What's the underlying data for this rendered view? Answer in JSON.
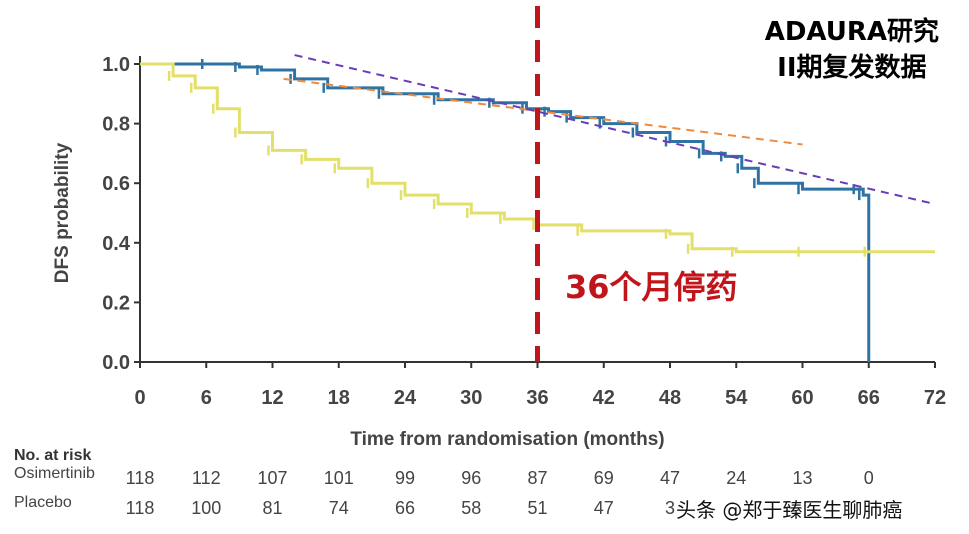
{
  "title": {
    "line1": "ADAURA研究",
    "line2": "II期复发数据"
  },
  "annotation": "36个月停药",
  "watermark": "头条 @郑于臻医生聊肺癌",
  "risk_table": {
    "title": "No. at risk",
    "rows": [
      {
        "label": "Osimertinib",
        "values": [
          "118",
          "112",
          "107",
          "101",
          "99",
          "96",
          "87",
          "69",
          "47",
          "24",
          "13",
          "0"
        ]
      },
      {
        "label": "Placebo",
        "values": [
          "118",
          "100",
          "81",
          "74",
          "66",
          "58",
          "51",
          "47",
          "3"
        ]
      }
    ]
  },
  "colors": {
    "osimertinib": "#2f73a4",
    "placebo": "#e2e06a",
    "trend_orange": "#f08a3c",
    "trend_purple": "#6a3db8",
    "cutoff_line": "#c0161b"
  },
  "chart_data": {
    "type": "line",
    "title": "",
    "xlabel": "Time from randomisation (months)",
    "ylabel": "DFS probability",
    "xlim": [
      0,
      72
    ],
    "ylim": [
      0,
      1.0
    ],
    "xticks": [
      "0",
      "6",
      "12",
      "18",
      "24",
      "30",
      "36",
      "42",
      "48",
      "54",
      "60",
      "66",
      "72"
    ],
    "yticks": [
      "0.0",
      "0.2",
      "0.4",
      "0.6",
      "0.8",
      "1.0"
    ],
    "grid": false,
    "series": [
      {
        "key": "osimertinib",
        "step": true,
        "x": [
          0,
          6,
          9,
          11,
          14,
          17,
          22,
          27,
          32,
          35,
          37,
          39,
          42,
          45,
          48,
          51,
          53,
          54.5,
          56,
          60,
          65,
          65.5,
          66
        ],
        "y": [
          1.0,
          1.0,
          0.99,
          0.98,
          0.95,
          0.92,
          0.9,
          0.88,
          0.87,
          0.85,
          0.84,
          0.82,
          0.8,
          0.77,
          0.74,
          0.7,
          0.69,
          0.65,
          0.6,
          0.58,
          0.58,
          0.56,
          0.0
        ]
      },
      {
        "key": "placebo",
        "step": true,
        "x": [
          0,
          3,
          5,
          7,
          9,
          12,
          15,
          18,
          21,
          24,
          27,
          30,
          33,
          36,
          40,
          48,
          50,
          54,
          60,
          66,
          72
        ],
        "y": [
          1.0,
          0.96,
          0.92,
          0.85,
          0.77,
          0.71,
          0.68,
          0.65,
          0.6,
          0.56,
          0.53,
          0.5,
          0.48,
          0.46,
          0.44,
          0.43,
          0.38,
          0.37,
          0.37,
          0.37,
          0.37
        ]
      }
    ],
    "trend_lines": [
      {
        "key": "trend_orange",
        "x": [
          13,
          60
        ],
        "y": [
          0.95,
          0.73
        ]
      },
      {
        "key": "trend_purple",
        "x": [
          14,
          72
        ],
        "y": [
          1.03,
          0.53
        ]
      }
    ],
    "vertical_marker": {
      "x": 36
    }
  }
}
